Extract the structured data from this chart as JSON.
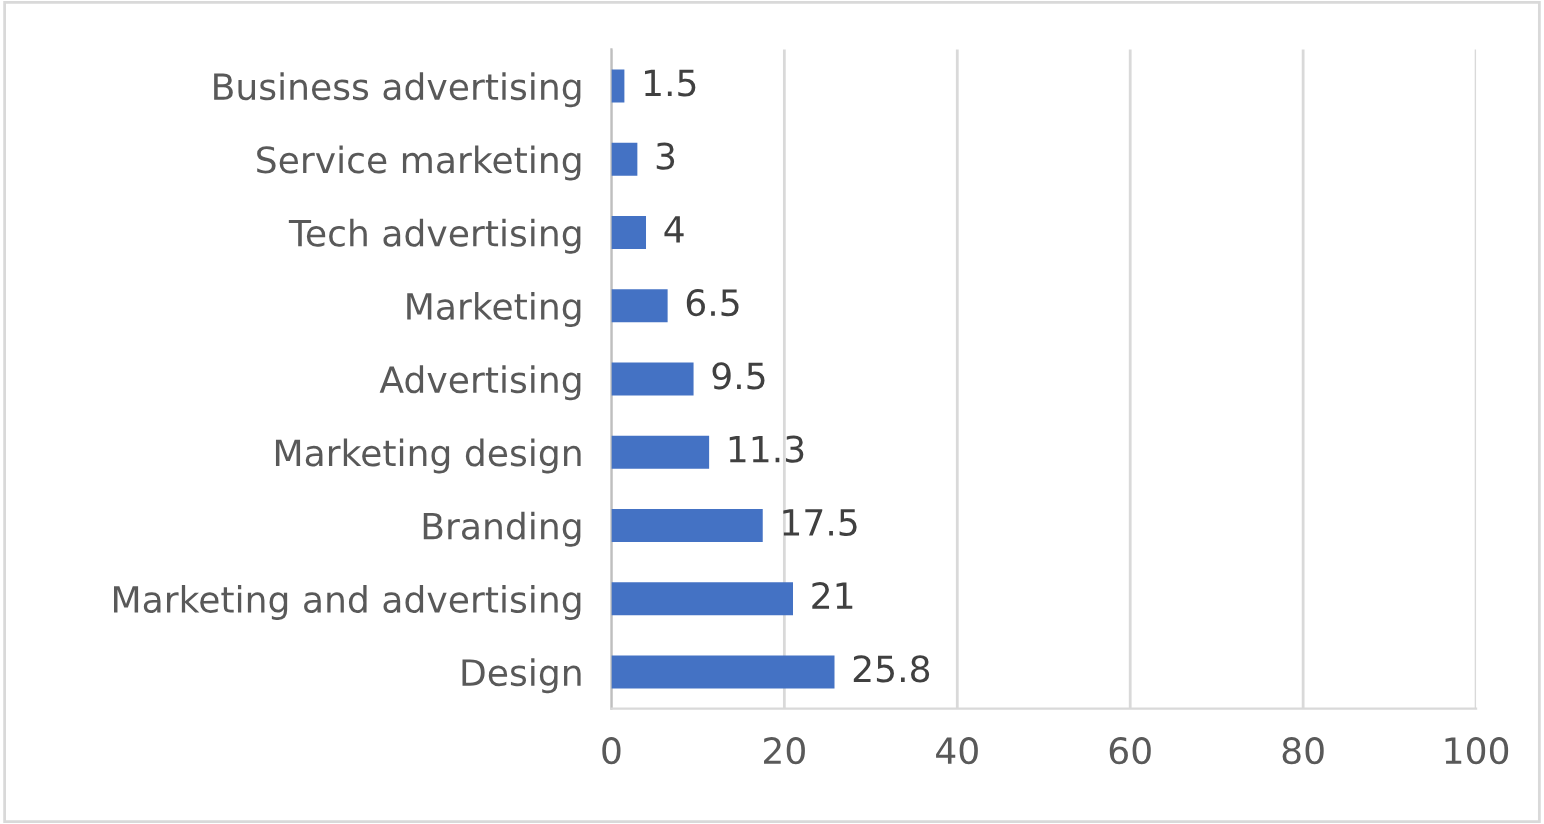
{
  "chart_data": {
    "type": "bar",
    "orientation": "horizontal",
    "categories": [
      "Business advertising",
      "Service marketing",
      "Tech advertising",
      "Marketing",
      "Advertising",
      "Marketing design",
      "Branding",
      "Marketing and advertising",
      "Design"
    ],
    "values": [
      1.5,
      3,
      4,
      6.5,
      9.5,
      11.3,
      17.5,
      21,
      25.8
    ],
    "color": "#4472c4",
    "xlim": [
      0,
      100
    ],
    "xticks": [
      0,
      20,
      40,
      60,
      80,
      100
    ],
    "grid": "x",
    "data_labels": true
  }
}
